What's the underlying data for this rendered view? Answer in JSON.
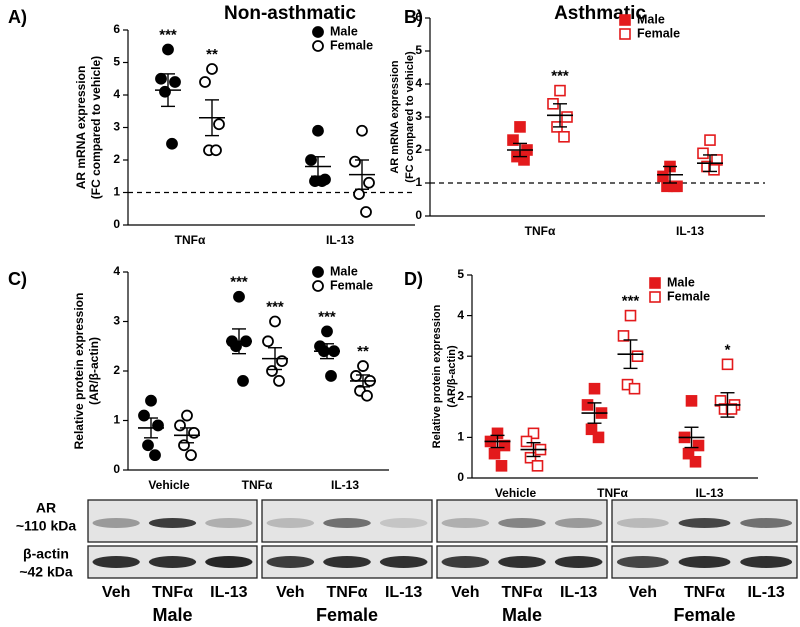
{
  "chart_data": [
    {
      "type": "scatter",
      "panel_label": "A)",
      "title": "Non-asthmatic",
      "ylabel": [
        "AR mRNA expression",
        "(FC compared to vehicle)"
      ],
      "categories": [
        "TNFα",
        "IL-13"
      ],
      "ylim": [
        0,
        6
      ],
      "yticks": [
        0,
        1,
        2,
        3,
        4,
        5,
        6
      ],
      "reference_line": 1,
      "series": [
        {
          "name": "Male",
          "color": "#000000",
          "marker": "circle",
          "filled": true,
          "points": [
            [
              5.4,
              4.5,
              4.4,
              4.1,
              2.5
            ],
            [
              2.9,
              2.0,
              1.4,
              1.35,
              1.35
            ]
          ],
          "mean": [
            4.15,
            1.8
          ],
          "sem": [
            0.5,
            0.3
          ],
          "significance": [
            "***",
            null
          ]
        },
        {
          "name": "Female",
          "color": "#000000",
          "marker": "circle",
          "filled": false,
          "points": [
            [
              4.8,
              4.4,
              3.1,
              2.3,
              2.3
            ],
            [
              2.9,
              1.95,
              1.3,
              0.95,
              0.4
            ]
          ],
          "mean": [
            3.3,
            1.55
          ],
          "sem": [
            0.55,
            0.45
          ],
          "significance": [
            "**",
            null
          ]
        }
      ]
    },
    {
      "type": "scatter",
      "panel_label": "B)",
      "title": "Asthmatic",
      "ylabel": [
        "AR mRNA expression",
        "(FC compared to vehicle)"
      ],
      "categories": [
        "TNFα",
        "IL-13"
      ],
      "ylim": [
        0,
        6
      ],
      "yticks": [
        0,
        1,
        2,
        3,
        4,
        5,
        6
      ],
      "reference_line": 1,
      "series": [
        {
          "name": "Male",
          "color": "#e31a1c",
          "marker": "square",
          "filled": true,
          "points": [
            [
              2.7,
              2.3,
              2.0,
              1.8,
              1.7
            ],
            [
              1.5,
              1.2,
              0.9,
              0.9,
              0.9
            ]
          ],
          "mean": [
            2.0,
            1.25
          ],
          "sem": [
            0.2,
            0.25
          ],
          "significance": [
            null,
            null
          ]
        },
        {
          "name": "Female",
          "color": "#e31a1c",
          "marker": "square",
          "filled": false,
          "points": [
            [
              3.8,
              3.4,
              3.0,
              2.7,
              2.4
            ],
            [
              2.3,
              1.9,
              1.7,
              1.5,
              1.4
            ]
          ],
          "mean": [
            3.05,
            1.6
          ],
          "sem": [
            0.35,
            0.25
          ],
          "significance": [
            "***",
            null
          ]
        }
      ]
    },
    {
      "type": "scatter",
      "panel_label": "C)",
      "ylabel": [
        "Relative protein expression",
        "(AR/β-actin)"
      ],
      "categories": [
        "Vehicle",
        "TNFα",
        "IL-13"
      ],
      "ylim": [
        0,
        4
      ],
      "yticks": [
        0,
        1,
        2,
        3,
        4
      ],
      "series": [
        {
          "name": "Male",
          "color": "#000000",
          "marker": "circle",
          "filled": true,
          "points": [
            [
              1.4,
              1.1,
              0.9,
              0.5,
              0.3
            ],
            [
              3.5,
              2.6,
              2.6,
              2.5,
              1.8
            ],
            [
              2.8,
              2.5,
              2.4,
              2.4,
              1.9
            ]
          ],
          "mean": [
            0.85,
            2.6,
            2.4
          ],
          "sem": [
            0.2,
            0.25,
            0.15
          ],
          "significance": [
            null,
            "***",
            "***"
          ]
        },
        {
          "name": "Female",
          "color": "#000000",
          "marker": "circle",
          "filled": false,
          "points": [
            [
              1.1,
              0.9,
              0.75,
              0.5,
              0.3
            ],
            [
              3.0,
              2.6,
              2.2,
              2.0,
              1.8
            ],
            [
              2.1,
              1.9,
              1.8,
              1.6,
              1.5
            ]
          ],
          "mean": [
            0.7,
            2.25,
            1.8
          ],
          "sem": [
            0.15,
            0.22,
            0.12
          ],
          "significance": [
            null,
            "***",
            "**"
          ]
        }
      ]
    },
    {
      "type": "scatter",
      "panel_label": "D)",
      "ylabel": [
        "Relative protein expression",
        "(AR/β-actin)"
      ],
      "categories": [
        "Vehicle",
        "TNFα",
        "IL-13"
      ],
      "ylim": [
        0,
        5
      ],
      "yticks": [
        0,
        1,
        2,
        3,
        4,
        5
      ],
      "series": [
        {
          "name": "Male",
          "color": "#e31a1c",
          "marker": "square",
          "filled": true,
          "points": [
            [
              1.1,
              0.9,
              0.8,
              0.6,
              0.3
            ],
            [
              2.2,
              1.8,
              1.6,
              1.2,
              1.0
            ],
            [
              1.9,
              1.0,
              0.8,
              0.6,
              0.4
            ]
          ],
          "mean": [
            0.9,
            1.6,
            1.0
          ],
          "sem": [
            0.15,
            0.25,
            0.25
          ],
          "significance": [
            null,
            null,
            null
          ]
        },
        {
          "name": "Female",
          "color": "#e31a1c",
          "marker": "square",
          "filled": false,
          "points": [
            [
              1.1,
              0.9,
              0.7,
              0.5,
              0.3
            ],
            [
              4.0,
              3.5,
              3.0,
              2.3,
              2.2
            ],
            [
              2.8,
              1.9,
              1.8,
              1.7,
              1.7
            ]
          ],
          "mean": [
            0.7,
            3.05,
            1.8
          ],
          "sem": [
            0.17,
            0.35,
            0.3
          ],
          "significance": [
            null,
            "***",
            "*"
          ]
        }
      ]
    }
  ],
  "blots": {
    "rows": [
      {
        "name": "AR",
        "size": "~110 kDa"
      },
      {
        "name": "β-actin",
        "size": "~42 kDa"
      }
    ],
    "groups": [
      {
        "label": "Male",
        "lanes": [
          "Veh",
          "TNFα",
          "IL-13"
        ]
      },
      {
        "label": "Female",
        "lanes": [
          "Veh",
          "TNFα",
          "IL-13"
        ]
      },
      {
        "label": "Male",
        "lanes": [
          "Veh",
          "TNFα",
          "IL-13"
        ]
      },
      {
        "label": "Female",
        "lanes": [
          "Veh",
          "TNFα",
          "IL-13"
        ]
      }
    ]
  }
}
